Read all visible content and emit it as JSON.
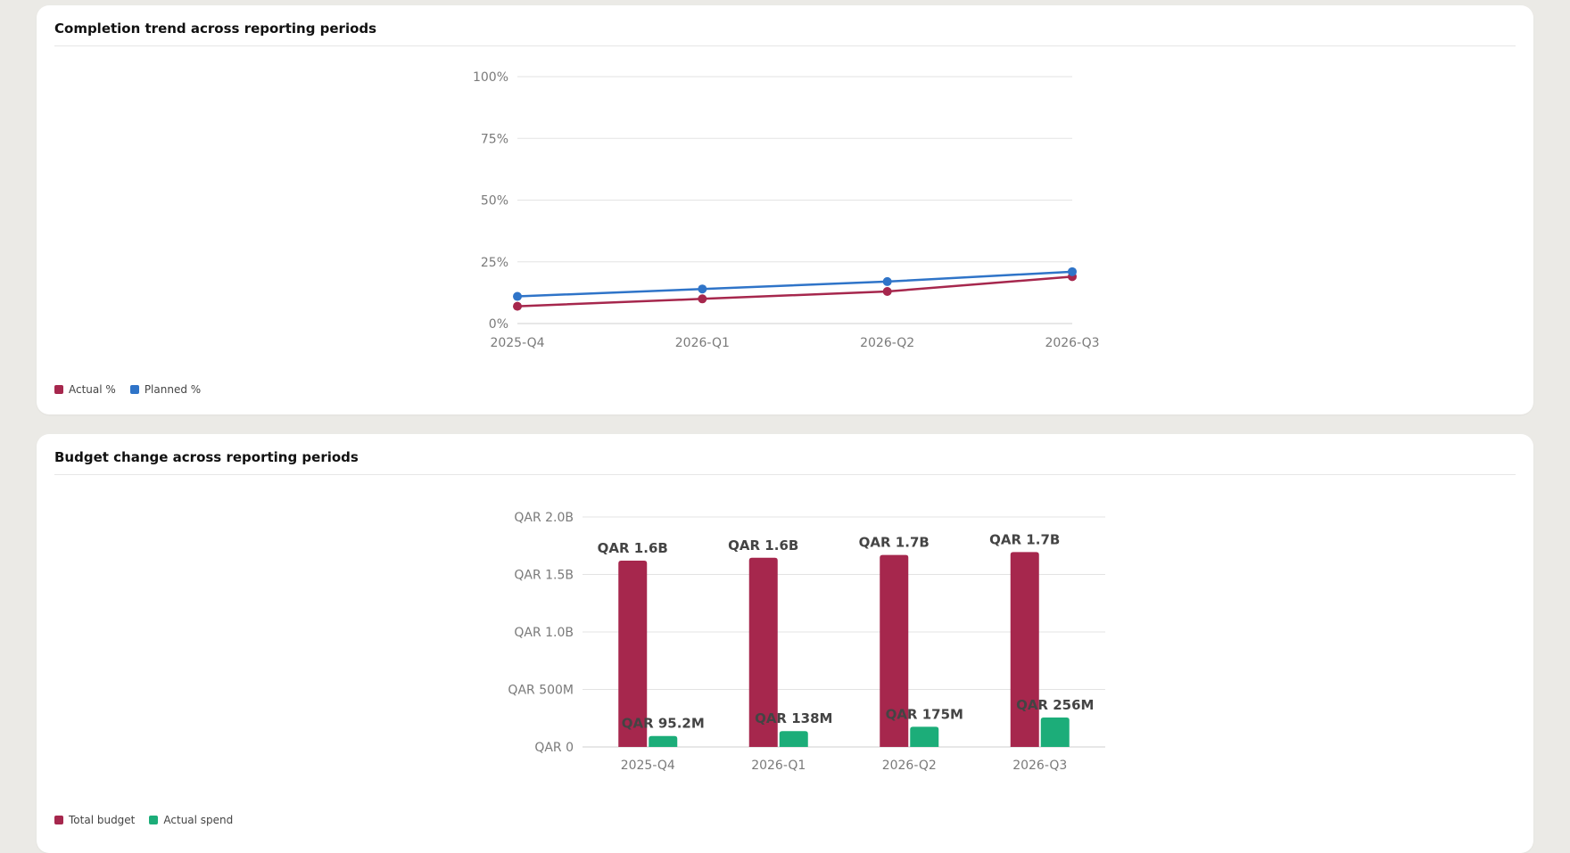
{
  "colors": {
    "actual": "#a6274d",
    "planned": "#2f74c8",
    "budget": "#a6274d",
    "spend": "#1cad79",
    "grid": "#e3e3e3",
    "axis_text": "#7a7a7a",
    "label_text": "#444444"
  },
  "charts": [
    {
      "title": "Completion trend across reporting periods",
      "legend": [
        {
          "label": "Actual %",
          "color": "#a6274d"
        },
        {
          "label": "Planned %",
          "color": "#2f74c8"
        }
      ]
    },
    {
      "title": "Budget change across reporting periods",
      "legend": [
        {
          "label": "Total budget",
          "color": "#a6274d"
        },
        {
          "label": "Actual spend",
          "color": "#1cad79"
        }
      ]
    }
  ],
  "chart_data": [
    {
      "type": "line",
      "title": "Completion trend across reporting periods",
      "categories": [
        "2025-Q4",
        "2026-Q1",
        "2026-Q2",
        "2026-Q3"
      ],
      "ylim": [
        0,
        100
      ],
      "yticks": [
        0,
        25,
        50,
        75,
        100
      ],
      "ytick_labels": [
        "0%",
        "25%",
        "50%",
        "75%",
        "100%"
      ],
      "grid": true,
      "legend_position": "bottom-left",
      "series": [
        {
          "name": "Actual %",
          "values": [
            7,
            10,
            13,
            19
          ]
        },
        {
          "name": "Planned %",
          "values": [
            11,
            14,
            17,
            21
          ]
        }
      ]
    },
    {
      "type": "bar",
      "title": "Budget change across reporting periods",
      "categories": [
        "2025-Q4",
        "2026-Q1",
        "2026-Q2",
        "2026-Q3"
      ],
      "ylim": [
        0,
        2000
      ],
      "yticks": [
        0,
        500,
        1000,
        1500,
        2000
      ],
      "ytick_labels": [
        "QAR 0",
        "QAR 500M",
        "QAR 1.0B",
        "QAR 1.5B",
        "QAR 2.0B"
      ],
      "unit": "QAR millions",
      "grid": true,
      "legend_position": "bottom-left",
      "series": [
        {
          "name": "Total budget",
          "values": [
            1620,
            1645,
            1670,
            1695
          ],
          "labels": [
            "QAR 1.6B",
            "QAR 1.6B",
            "QAR 1.7B",
            "QAR 1.7B"
          ]
        },
        {
          "name": "Actual spend",
          "values": [
            95.2,
            138,
            175,
            256
          ],
          "labels": [
            "QAR 95.2M",
            "QAR 138M",
            "QAR 175M",
            "QAR 256M"
          ]
        }
      ]
    }
  ]
}
